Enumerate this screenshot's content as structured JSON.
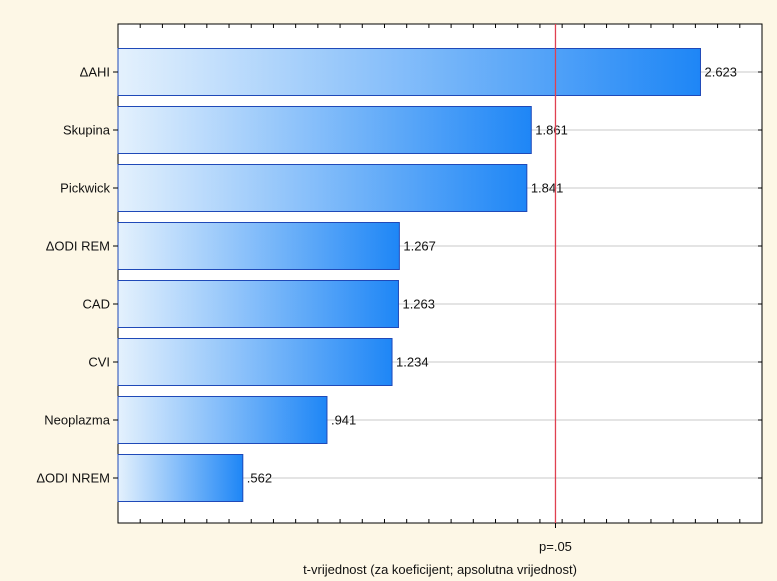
{
  "chart_data": {
    "type": "bar",
    "orientation": "horizontal",
    "categories": [
      "ΔAHI",
      "Skupina",
      "Pickwick",
      "ΔODI REM",
      "CAD",
      "CVI",
      "Neoplazma",
      "ΔODI NREM"
    ],
    "values": [
      2.623,
      1.861,
      1.841,
      1.267,
      1.263,
      1.234,
      0.941,
      0.562
    ],
    "value_labels": [
      "2.623",
      "1.861",
      "1.841",
      "1.267",
      "1.263",
      "1.234",
      ".941",
      ".562"
    ],
    "xlabel": "t-vrijednost (za koeficijent; apsolutna vrijednost)",
    "ylabel": "",
    "xlim": [
      0,
      2.9
    ],
    "reference_line": {
      "value": 1.97,
      "label": "p=.05",
      "color": "#e04050"
    },
    "grid": true,
    "colors": {
      "bar_start": "#e4f1fd",
      "bar_end": "#1e86f6",
      "bar_border": "#1f49b8",
      "background": "#fdf7e6",
      "plot_bg": "#ffffff"
    }
  }
}
